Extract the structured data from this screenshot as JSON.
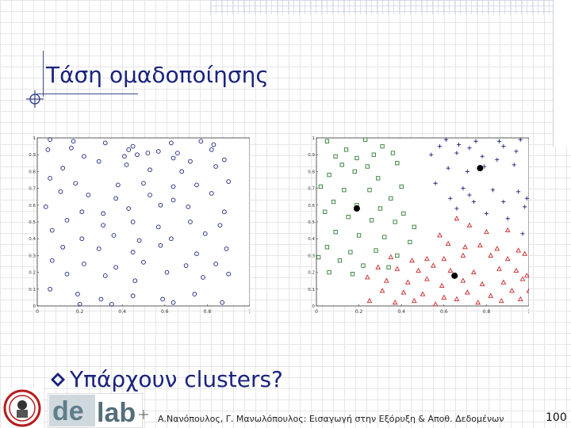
{
  "slide": {
    "title": "Τάση ομαδοποίησης",
    "bullet": "Υπάρχουν clusters?",
    "footer": "Α.Νανόπουλος, Γ. Μανωλόπουλος: Εισαγωγή στην Εξόρυξη & Αποθ. Δεδομένων",
    "page_number": "100",
    "icons": [
      "crosshair-icon",
      "bullet-icon",
      "university-seal-logo",
      "dblab-logo"
    ],
    "colors": {
      "title": "#1a237e",
      "cluster_green": "#2e7d32",
      "cluster_red": "#c62828",
      "cluster_blue": "#1a237e"
    }
  },
  "chart_data": [
    {
      "type": "scatter",
      "title": "",
      "xlabel": "",
      "ylabel": "",
      "xlim": [
        0,
        1
      ],
      "ylim": [
        0,
        1
      ],
      "xticks": [
        "0",
        "0.2",
        "0.4",
        "0.6",
        "0.8",
        "1"
      ],
      "yticks": [
        "0",
        "0.1",
        "0.2",
        "0.3",
        "0.4",
        "0.5",
        "0.6",
        "0.7",
        "0.8",
        "0.9",
        "1"
      ],
      "series": [
        {
          "marker": "circle",
          "color": "#1a237e",
          "points": [
            [
              0.06,
              0.99
            ],
            [
              0.17,
              0.98
            ],
            [
              0.32,
              0.97
            ],
            [
              0.45,
              0.95
            ],
            [
              0.52,
              0.91
            ],
            [
              0.63,
              0.97
            ],
            [
              0.77,
              0.98
            ],
            [
              0.83,
              0.96
            ],
            [
              0.05,
              0.93
            ],
            [
              0.16,
              0.94
            ],
            [
              0.43,
              0.93
            ],
            [
              0.57,
              0.92
            ],
            [
              0.66,
              0.91
            ],
            [
              0.82,
              0.93
            ],
            [
              0.22,
              0.89
            ],
            [
              0.41,
              0.89
            ],
            [
              0.47,
              0.9
            ],
            [
              0.64,
              0.88
            ],
            [
              0.72,
              0.86
            ],
            [
              0.88,
              0.87
            ],
            [
              0.12,
              0.82
            ],
            [
              0.29,
              0.86
            ],
            [
              0.42,
              0.84
            ],
            [
              0.53,
              0.81
            ],
            [
              0.68,
              0.8
            ],
            [
              0.84,
              0.83
            ],
            [
              0.06,
              0.76
            ],
            [
              0.18,
              0.73
            ],
            [
              0.38,
              0.72
            ],
            [
              0.5,
              0.73
            ],
            [
              0.64,
              0.71
            ],
            [
              0.75,
              0.72
            ],
            [
              0.9,
              0.74
            ],
            [
              0.11,
              0.68
            ],
            [
              0.24,
              0.66
            ],
            [
              0.37,
              0.64
            ],
            [
              0.53,
              0.66
            ],
            [
              0.64,
              0.63
            ],
            [
              0.82,
              0.67
            ],
            [
              0.04,
              0.59
            ],
            [
              0.21,
              0.56
            ],
            [
              0.31,
              0.55
            ],
            [
              0.43,
              0.58
            ],
            [
              0.58,
              0.6
            ],
            [
              0.71,
              0.59
            ],
            [
              0.88,
              0.56
            ],
            [
              0.14,
              0.51
            ],
            [
              0.31,
              0.48
            ],
            [
              0.45,
              0.5
            ],
            [
              0.57,
              0.47
            ],
            [
              0.72,
              0.5
            ],
            [
              0.86,
              0.48
            ],
            [
              0.07,
              0.45
            ],
            [
              0.21,
              0.4
            ],
            [
              0.36,
              0.42
            ],
            [
              0.48,
              0.39
            ],
            [
              0.63,
              0.4
            ],
            [
              0.79,
              0.43
            ],
            [
              0.12,
              0.35
            ],
            [
              0.29,
              0.34
            ],
            [
              0.45,
              0.32
            ],
            [
              0.58,
              0.36
            ],
            [
              0.75,
              0.31
            ],
            [
              0.89,
              0.34
            ],
            [
              0.07,
              0.27
            ],
            [
              0.22,
              0.25
            ],
            [
              0.37,
              0.23
            ],
            [
              0.5,
              0.26
            ],
            [
              0.7,
              0.24
            ],
            [
              0.84,
              0.25
            ],
            [
              0.14,
              0.19
            ],
            [
              0.32,
              0.18
            ],
            [
              0.46,
              0.15
            ],
            [
              0.61,
              0.2
            ],
            [
              0.78,
              0.17
            ],
            [
              0.9,
              0.19
            ],
            [
              0.06,
              0.1
            ],
            [
              0.19,
              0.07
            ],
            [
              0.3,
              0.04
            ],
            [
              0.45,
              0.06
            ],
            [
              0.59,
              0.04
            ],
            [
              0.74,
              0.07
            ],
            [
              0.87,
              0.02
            ],
            [
              0.35,
              0.01
            ],
            [
              0.64,
              0.02
            ],
            [
              0.2,
              0.01
            ]
          ]
        }
      ]
    },
    {
      "type": "scatter",
      "title": "",
      "xlabel": "",
      "ylabel": "",
      "xlim": [
        0,
        1
      ],
      "ylim": [
        0,
        1
      ],
      "xticks": [
        "0",
        "0.2",
        "0.4",
        "0.6",
        "0.8",
        "1"
      ],
      "yticks": [
        "0",
        "0.1",
        "0.2",
        "0.3",
        "0.4",
        "0.5",
        "0.6",
        "0.7",
        "0.8",
        "0.9",
        "1"
      ],
      "series": [
        {
          "marker": "square",
          "color": "#2e7d32",
          "points": [
            [
              0.05,
              0.98
            ],
            [
              0.14,
              0.93
            ],
            [
              0.23,
              0.99
            ],
            [
              0.31,
              0.95
            ],
            [
              0.09,
              0.89
            ],
            [
              0.19,
              0.88
            ],
            [
              0.27,
              0.9
            ],
            [
              0.36,
              0.91
            ],
            [
              0.12,
              0.84
            ],
            [
              0.24,
              0.83
            ],
            [
              0.38,
              0.85
            ],
            [
              0.06,
              0.78
            ],
            [
              0.18,
              0.8
            ],
            [
              0.29,
              0.76
            ],
            [
              0.4,
              0.71
            ],
            [
              0.02,
              0.71
            ],
            [
              0.13,
              0.69
            ],
            [
              0.25,
              0.69
            ],
            [
              0.35,
              0.64
            ],
            [
              0.08,
              0.62
            ],
            [
              0.19,
              0.6
            ],
            [
              0.3,
              0.58
            ],
            [
              0.41,
              0.55
            ],
            [
              0.04,
              0.56
            ],
            [
              0.15,
              0.53
            ],
            [
              0.26,
              0.51
            ],
            [
              0.37,
              0.5
            ],
            [
              0.46,
              0.47
            ],
            [
              0.09,
              0.44
            ],
            [
              0.2,
              0.42
            ],
            [
              0.32,
              0.41
            ],
            [
              0.44,
              0.38
            ],
            [
              0.05,
              0.35
            ],
            [
              0.16,
              0.32
            ],
            [
              0.28,
              0.33
            ],
            [
              0.38,
              0.3
            ],
            [
              0.01,
              0.29
            ],
            [
              0.11,
              0.27
            ],
            [
              0.22,
              0.24
            ],
            [
              0.34,
              0.23
            ],
            [
              0.06,
              0.2
            ],
            [
              0.17,
              0.19
            ]
          ]
        },
        {
          "marker": "plus",
          "color": "#1a237e",
          "points": [
            [
              0.61,
              0.99
            ],
            [
              0.75,
              0.98
            ],
            [
              0.86,
              0.98
            ],
            [
              0.96,
              0.99
            ],
            [
              0.58,
              0.95
            ],
            [
              0.67,
              0.96
            ],
            [
              0.72,
              0.94
            ],
            [
              0.88,
              0.95
            ],
            [
              0.94,
              0.92
            ],
            [
              0.54,
              0.9
            ],
            [
              0.66,
              0.91
            ],
            [
              0.78,
              0.89
            ],
            [
              0.85,
              0.87
            ],
            [
              0.62,
              0.82
            ],
            [
              0.71,
              0.8
            ],
            [
              0.79,
              0.83
            ],
            [
              0.93,
              0.84
            ],
            [
              0.56,
              0.73
            ],
            [
              0.69,
              0.7
            ],
            [
              0.83,
              0.69
            ],
            [
              0.95,
              0.68
            ],
            [
              0.63,
              0.64
            ],
            [
              0.74,
              0.62
            ],
            [
              0.88,
              0.62
            ],
            [
              0.98,
              0.59
            ],
            [
              0.66,
              0.58
            ],
            [
              0.8,
              0.55
            ],
            [
              0.9,
              0.52
            ],
            [
              0.99,
              0.64
            ],
            [
              0.72,
              0.66
            ],
            [
              0.97,
              0.43
            ]
          ]
        },
        {
          "marker": "triangle",
          "color": "#c62828",
          "points": [
            [
              0.66,
              0.52
            ],
            [
              0.72,
              0.48
            ],
            [
              0.58,
              0.42
            ],
            [
              0.8,
              0.44
            ],
            [
              0.9,
              0.45
            ],
            [
              0.62,
              0.37
            ],
            [
              0.7,
              0.35
            ],
            [
              0.77,
              0.36
            ],
            [
              0.85,
              0.34
            ],
            [
              0.95,
              0.33
            ],
            [
              0.35,
              0.29
            ],
            [
              0.45,
              0.27
            ],
            [
              0.52,
              0.28
            ],
            [
              0.6,
              0.28
            ],
            [
              0.69,
              0.3
            ],
            [
              0.82,
              0.3
            ],
            [
              0.9,
              0.28
            ],
            [
              0.98,
              0.31
            ],
            [
              0.29,
              0.23
            ],
            [
              0.38,
              0.22
            ],
            [
              0.48,
              0.21
            ],
            [
              0.55,
              0.24
            ],
            [
              0.63,
              0.21
            ],
            [
              0.74,
              0.2
            ],
            [
              0.86,
              0.22
            ],
            [
              0.94,
              0.21
            ],
            [
              0.24,
              0.17
            ],
            [
              0.33,
              0.15
            ],
            [
              0.43,
              0.14
            ],
            [
              0.52,
              0.16
            ],
            [
              0.59,
              0.12
            ],
            [
              0.69,
              0.15
            ],
            [
              0.78,
              0.13
            ],
            [
              0.88,
              0.14
            ],
            [
              0.97,
              0.16
            ],
            [
              0.31,
              0.09
            ],
            [
              0.41,
              0.08
            ],
            [
              0.5,
              0.07
            ],
            [
              0.6,
              0.05
            ],
            [
              0.71,
              0.08
            ],
            [
              0.82,
              0.06
            ],
            [
              0.92,
              0.09
            ],
            [
              0.25,
              0.03
            ],
            [
              0.37,
              0.02
            ],
            [
              0.46,
              0.03
            ],
            [
              0.56,
              0.01
            ],
            [
              0.66,
              0.04
            ],
            [
              0.76,
              0.02
            ],
            [
              0.87,
              0.03
            ],
            [
              0.96,
              0.04
            ],
            [
              0.99,
              0.18
            ],
            [
              1.0,
              0.09
            ]
          ]
        },
        {
          "marker": "dot",
          "color": "#000000",
          "points": [
            [
              0.19,
              0.58
            ],
            [
              0.77,
              0.82
            ],
            [
              0.65,
              0.18
            ]
          ]
        }
      ]
    }
  ]
}
